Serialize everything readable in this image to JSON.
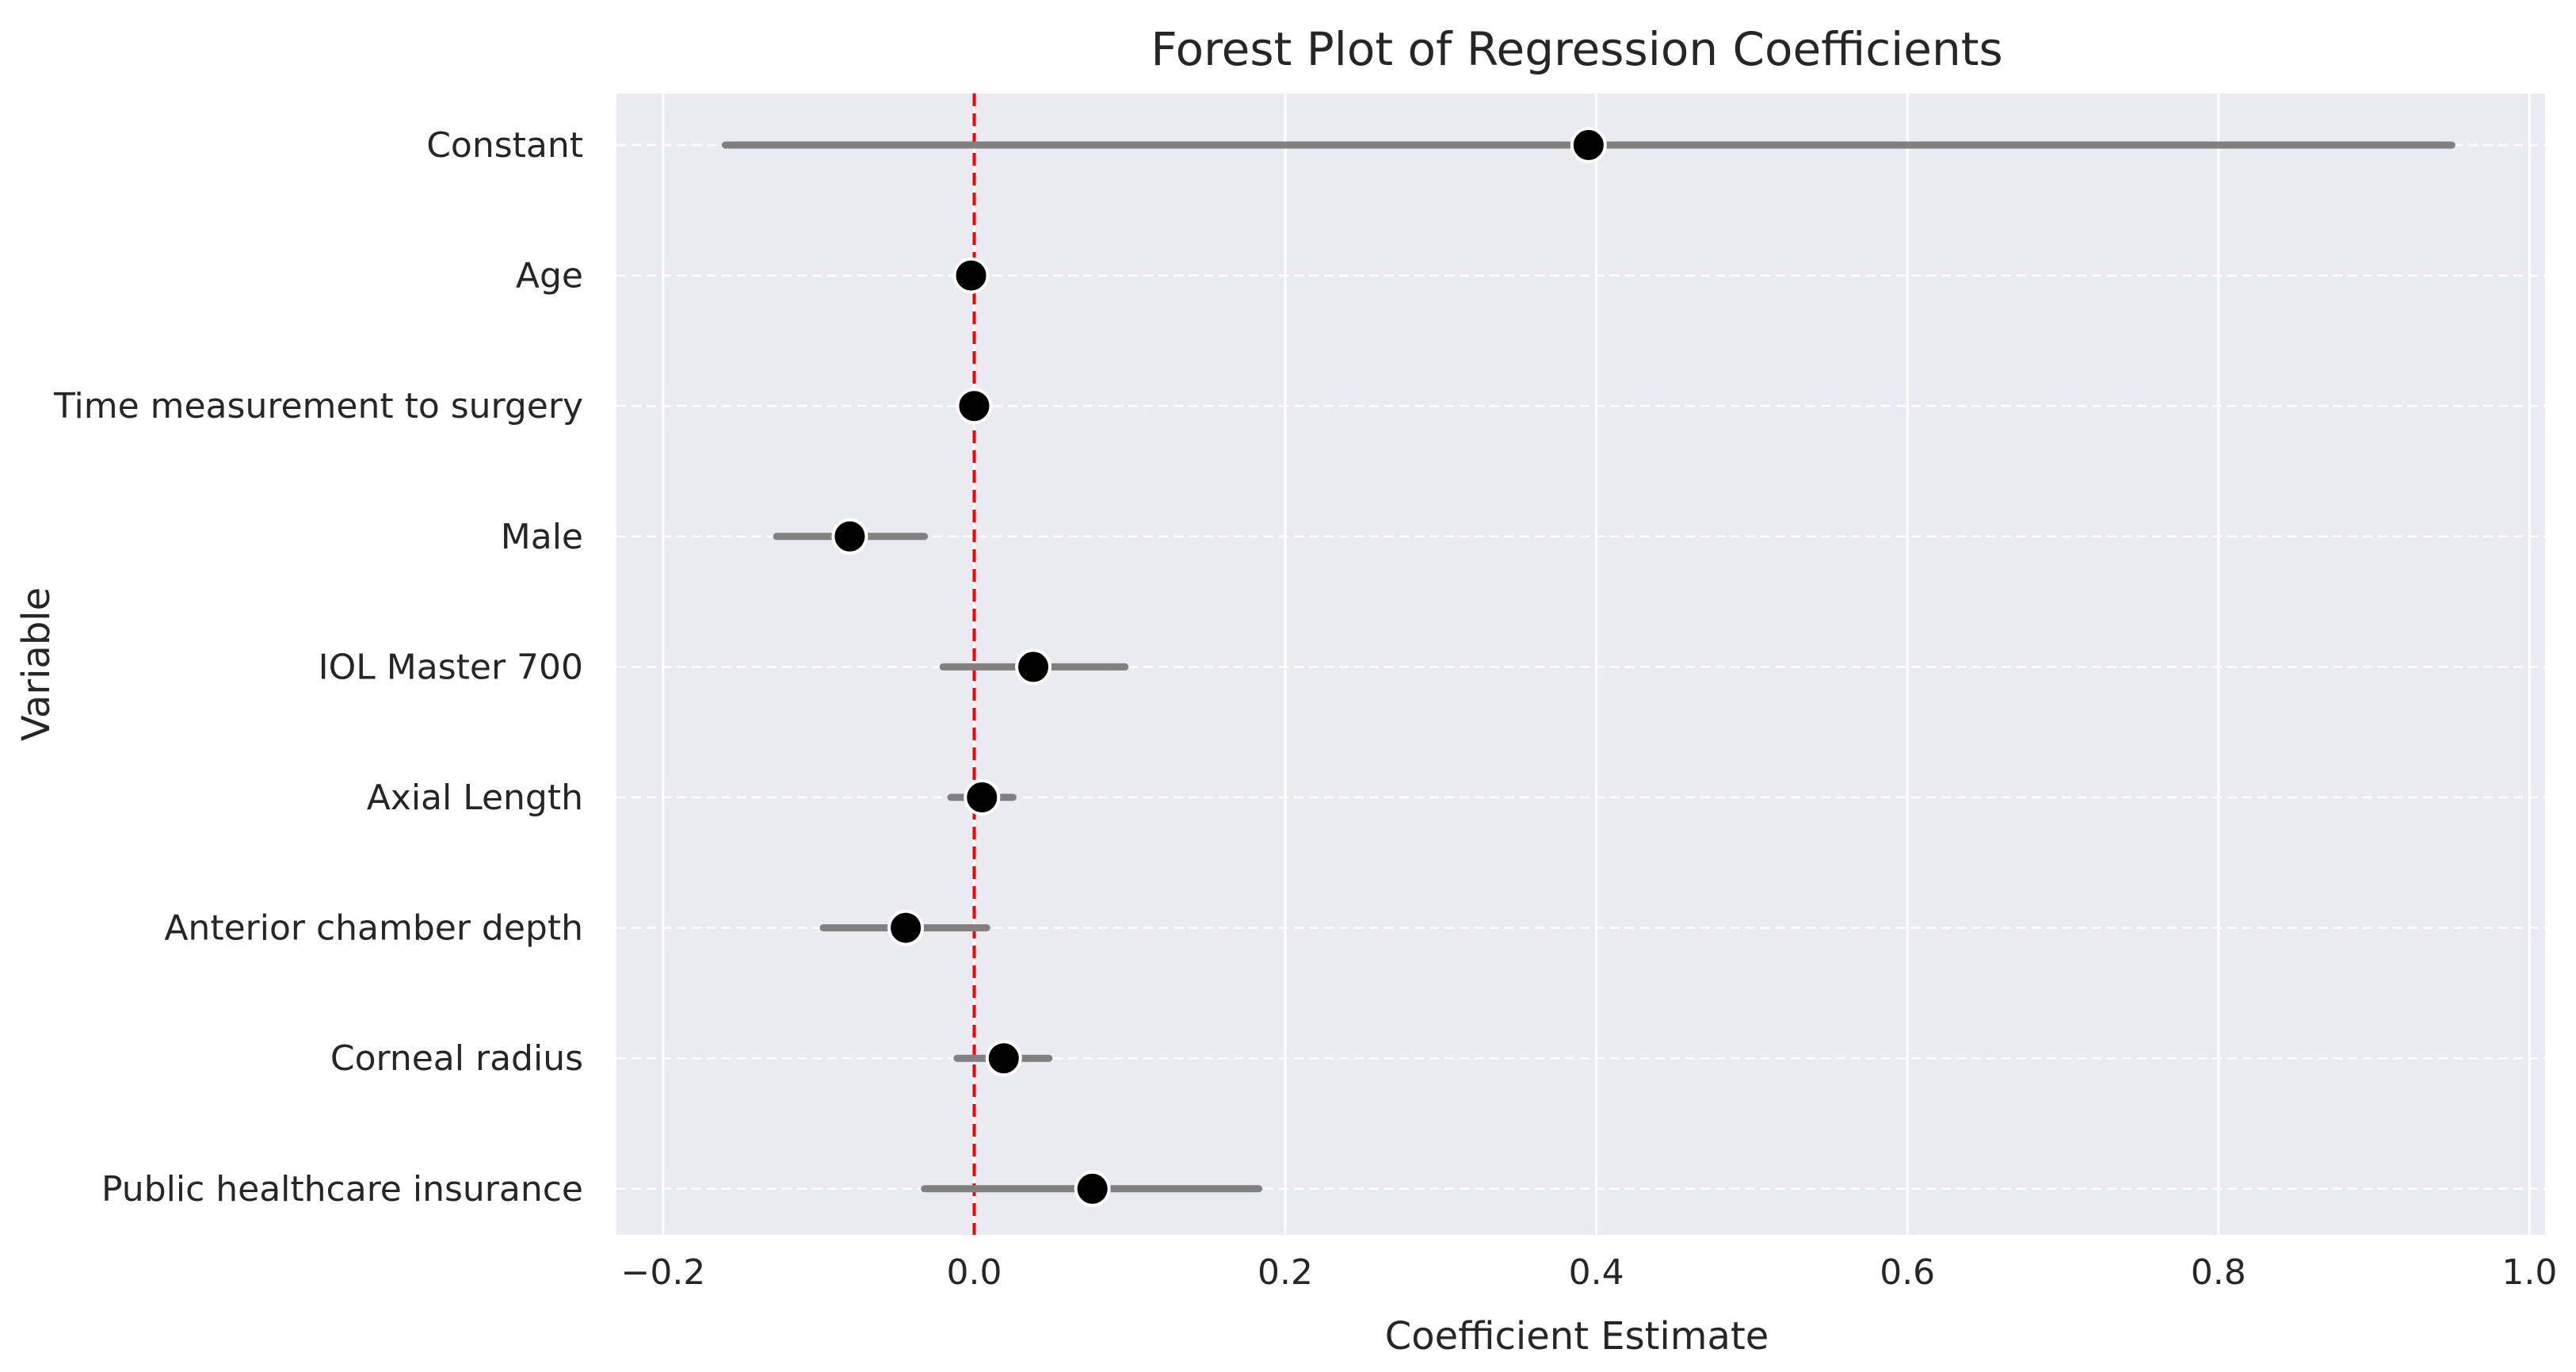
{
  "chart_data": {
    "type": "scatter",
    "subtype": "forest-plot",
    "title": "Forest Plot of Regression Coefficients",
    "xlabel": "Coefficient Estimate",
    "ylabel": "Variable",
    "xlim": [
      -0.23,
      1.01
    ],
    "xticks": [
      -0.2,
      0.0,
      0.2,
      0.4,
      0.6,
      0.8,
      1.0
    ],
    "xtick_labels": [
      "−0.2",
      "0.0",
      "0.2",
      "0.4",
      "0.6",
      "0.8",
      "1.0"
    ],
    "grid": "on",
    "reference_line": {
      "x": 0.0,
      "color": "#ff0000",
      "style": "dashed"
    },
    "colors": {
      "background": "#eaeaf2",
      "grid": "#ffffff",
      "errorbar": "#808080",
      "point": "#000000",
      "point_edge": "#ffffff"
    },
    "categories": [
      "Constant",
      "Age",
      "Time measurement to surgery",
      "Male",
      "IOL Master 700",
      "Axial Length",
      "Anterior chamber depth",
      "Corneal radius",
      "Public healthcare insurance"
    ],
    "series": [
      {
        "estimates": [
          0.395,
          -0.002,
          0.0,
          -0.08,
          0.038,
          0.005,
          -0.044,
          0.019,
          0.076
        ],
        "ci_lower": [
          -0.16,
          -0.008,
          -0.004,
          -0.127,
          -0.02,
          -0.015,
          -0.097,
          -0.011,
          -0.032
        ],
        "ci_upper": [
          0.95,
          0.004,
          0.004,
          -0.032,
          0.097,
          0.025,
          0.008,
          0.048,
          0.183
        ]
      }
    ]
  }
}
